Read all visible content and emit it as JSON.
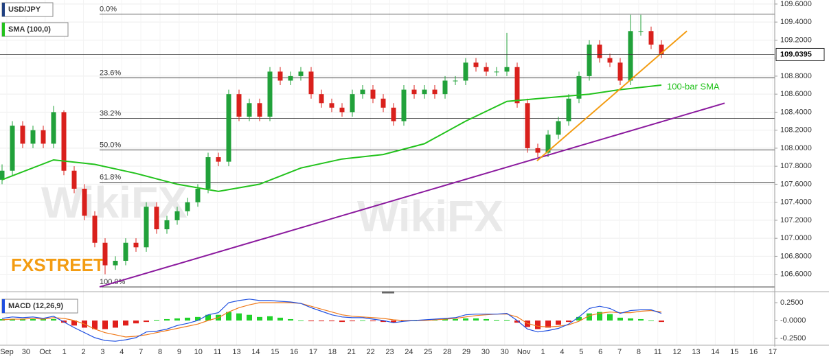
{
  "chart_data": {
    "type": "candlestick",
    "symbol": "USD/JPY",
    "indicator_label": "SMA (100,0)",
    "brand": "FXSTREET",
    "watermark": "WikiFX",
    "up_color": "#21a13a",
    "down_color": "#d9201c",
    "xlim": [
      -0.2,
      75
    ],
    "ylim": [
      106.43,
      109.645
    ],
    "yticks": [
      {
        "value": 106.6,
        "label": "106.6000"
      },
      {
        "value": 106.8,
        "label": "106.8000"
      },
      {
        "value": 107.0,
        "label": "107.0000"
      },
      {
        "value": 107.2,
        "label": "107.2000"
      },
      {
        "value": 107.4,
        "label": "107.4000"
      },
      {
        "value": 107.6,
        "label": "107.6000"
      },
      {
        "value": 107.8,
        "label": "107.8000"
      },
      {
        "value": 108.0,
        "label": "108.0000"
      },
      {
        "value": 108.2,
        "label": "108.2000"
      },
      {
        "value": 108.4,
        "label": "108.4000"
      },
      {
        "value": 108.6,
        "label": "108.6000"
      },
      {
        "value": 108.8,
        "label": "108.8000"
      },
      {
        "value": 109.0,
        "label": "109.0000"
      },
      {
        "value": 109.2,
        "label": "109.2000"
      },
      {
        "value": 109.4,
        "label": "109.4000"
      },
      {
        "value": 109.6,
        "label": "109.6000"
      }
    ],
    "grid": true,
    "last_price": 109.0395,
    "date_labels": [
      "Sep",
      "30",
      "Oct",
      "1",
      "2",
      "3",
      "4",
      "7",
      "8",
      "9",
      "10",
      "11",
      "13",
      "14",
      "15",
      "16",
      "17",
      "18",
      "21",
      "22",
      "23",
      "24",
      "25",
      "28",
      "29",
      "30",
      "30",
      "Nov",
      "1",
      "4",
      "5",
      "6",
      "7",
      "8",
      "11",
      "12",
      "13",
      "14",
      "15",
      "16",
      "17"
    ],
    "x": [
      0,
      1,
      2,
      3,
      4,
      5,
      6,
      7,
      8,
      9,
      10,
      11,
      12,
      13,
      14,
      15,
      16,
      17,
      18,
      19,
      20,
      21,
      22,
      23,
      24,
      25,
      26,
      27,
      28,
      29,
      30,
      31,
      32,
      33,
      34,
      35,
      36,
      37,
      38,
      39,
      40,
      41,
      42,
      43,
      44,
      45,
      46,
      47,
      48,
      49,
      50,
      51,
      52,
      53,
      54,
      55,
      56,
      57,
      58,
      59,
      60,
      61,
      62,
      63,
      64
    ],
    "open": [
      107.65,
      107.75,
      108.25,
      108.05,
      108.2,
      108.05,
      108.4,
      107.75,
      107.55,
      107.25,
      106.95,
      106.7,
      106.75,
      106.95,
      106.9,
      107.35,
      107.1,
      107.2,
      107.3,
      107.4,
      107.55,
      107.9,
      107.85,
      108.6,
      108.35,
      108.5,
      108.35,
      108.85,
      108.75,
      108.8,
      108.85,
      108.6,
      108.5,
      108.45,
      108.4,
      108.6,
      108.65,
      108.55,
      108.45,
      108.3,
      108.65,
      108.6,
      108.65,
      108.6,
      108.75,
      108.75,
      108.95,
      108.9,
      108.85,
      108.85,
      108.9,
      108.5,
      108.0,
      107.95,
      108.15,
      108.3,
      108.55,
      108.8,
      109.15,
      109.0,
      108.95,
      108.75,
      109.3,
      109.3,
      109.15
    ],
    "high": [
      107.82,
      108.3,
      108.3,
      108.25,
      108.25,
      108.47,
      108.42,
      107.8,
      107.6,
      107.3,
      107.0,
      106.8,
      107.0,
      107.0,
      107.4,
      107.4,
      107.25,
      107.35,
      107.45,
      107.6,
      107.95,
      107.95,
      108.65,
      108.65,
      108.55,
      108.55,
      108.9,
      108.9,
      108.85,
      108.9,
      108.9,
      108.65,
      108.55,
      108.5,
      108.65,
      108.7,
      108.7,
      108.6,
      108.5,
      108.7,
      108.7,
      108.7,
      108.7,
      108.8,
      108.8,
      109.0,
      109.0,
      108.95,
      108.9,
      109.28,
      108.95,
      108.55,
      108.05,
      108.2,
      108.35,
      108.6,
      108.85,
      109.2,
      109.2,
      109.05,
      109.0,
      109.48,
      109.48,
      109.35,
      109.2
    ],
    "low": [
      107.6,
      107.7,
      108.0,
      108.0,
      108.0,
      108.0,
      107.7,
      107.5,
      107.2,
      106.9,
      106.6,
      106.65,
      106.7,
      106.85,
      106.85,
      107.05,
      107.05,
      107.15,
      107.25,
      107.35,
      107.5,
      107.8,
      107.8,
      108.3,
      108.3,
      108.3,
      108.3,
      108.7,
      108.7,
      108.75,
      108.55,
      108.45,
      108.4,
      108.35,
      108.35,
      108.55,
      108.5,
      108.4,
      108.25,
      108.25,
      108.55,
      108.55,
      108.55,
      108.55,
      108.7,
      108.7,
      108.85,
      108.8,
      108.8,
      108.8,
      108.45,
      107.95,
      107.9,
      107.9,
      108.1,
      108.25,
      108.5,
      108.75,
      108.95,
      108.9,
      108.7,
      108.7,
      109.25,
      109.1,
      109.0
    ],
    "close": [
      107.75,
      108.25,
      108.05,
      108.2,
      108.05,
      108.4,
      107.75,
      107.55,
      107.25,
      106.95,
      106.7,
      106.75,
      106.95,
      106.9,
      107.35,
      107.1,
      107.2,
      107.3,
      107.4,
      107.55,
      107.9,
      107.85,
      108.6,
      108.35,
      108.5,
      108.35,
      108.85,
      108.75,
      108.8,
      108.85,
      108.6,
      108.5,
      108.45,
      108.4,
      108.6,
      108.65,
      108.55,
      108.45,
      108.3,
      108.65,
      108.6,
      108.65,
      108.6,
      108.75,
      108.75,
      108.95,
      108.9,
      108.85,
      108.85,
      108.9,
      108.5,
      108.0,
      107.95,
      108.15,
      108.3,
      108.55,
      108.8,
      109.15,
      109.0,
      108.95,
      108.75,
      109.3,
      109.3,
      109.15,
      109.04
    ],
    "fibonacci": [
      {
        "label": "0.0%",
        "value": 109.49
      },
      {
        "label": "23.6%",
        "value": 108.78
      },
      {
        "label": "38.2%",
        "value": 108.33
      },
      {
        "label": "50.0%",
        "value": 107.98
      },
      {
        "label": "61.8%",
        "value": 107.62
      },
      {
        "label": "100.0%",
        "value": 106.46
      }
    ],
    "sma": {
      "name": "100-bar SMA",
      "color": "#22c21c",
      "x": [
        0,
        5,
        9,
        13,
        17,
        21,
        25,
        29,
        33,
        37,
        41,
        45,
        49,
        53,
        57,
        60,
        64
      ],
      "values": [
        107.65,
        107.87,
        107.82,
        107.72,
        107.6,
        107.52,
        107.6,
        107.78,
        107.88,
        107.93,
        108.05,
        108.3,
        108.52,
        108.56,
        108.6,
        108.65,
        108.7
      ]
    },
    "trendlines": [
      {
        "color": "#8b1a9e",
        "x": [
          9.47,
          70.13
        ],
        "values": [
          106.46,
          108.5
        ]
      },
      {
        "color": "#f39c12",
        "x": [
          51.93,
          66.47
        ],
        "values": [
          107.86,
          109.3
        ]
      }
    ],
    "macd": {
      "title": "MACD (12,26,9)",
      "ylim": [
        -0.317,
        0.337
      ],
      "yticks": [
        {
          "value": 0.25,
          "label": "0.2500"
        },
        {
          "value": 0,
          "label": "-0.0000"
        },
        {
          "value": -0.25,
          "label": "-0.2500"
        }
      ],
      "up_color": "#21d12a",
      "down_color": "#e0201c",
      "macd_color": "#1f4fe0",
      "signal_color": "#f07a1a",
      "histogram": [
        0.02,
        0.02,
        0.02,
        0.02,
        0.02,
        0.02,
        -0.03,
        -0.07,
        -0.1,
        -0.12,
        -0.12,
        -0.1,
        -0.07,
        -0.04,
        -0.02,
        0.01,
        0.02,
        0.03,
        0.04,
        0.05,
        0.08,
        0.08,
        0.12,
        0.1,
        0.08,
        0.05,
        0.06,
        0.04,
        0.02,
        0.0,
        -0.01,
        -0.01,
        -0.01,
        -0.02,
        -0.01,
        0.0,
        -0.01,
        -0.02,
        -0.03,
        -0.01,
        0.0,
        0.01,
        0.01,
        0.02,
        0.02,
        0.03,
        0.03,
        0.02,
        0.01,
        0.01,
        -0.03,
        -0.09,
        -0.12,
        -0.1,
        -0.06,
        -0.02,
        0.05,
        0.1,
        0.12,
        0.09,
        0.04,
        0.03,
        0.02,
        0.0,
        -0.02
      ],
      "macd": [
        0.03,
        0.05,
        0.04,
        0.05,
        0.03,
        0.06,
        -0.02,
        -0.1,
        -0.17,
        -0.24,
        -0.28,
        -0.29,
        -0.27,
        -0.24,
        -0.16,
        -0.15,
        -0.12,
        -0.07,
        -0.04,
        0.0,
        0.08,
        0.11,
        0.25,
        0.28,
        0.3,
        0.28,
        0.28,
        0.27,
        0.26,
        0.24,
        0.18,
        0.13,
        0.08,
        0.05,
        0.04,
        0.04,
        0.02,
        0.0,
        -0.03,
        -0.01,
        0.0,
        0.01,
        0.02,
        0.03,
        0.04,
        0.08,
        0.09,
        0.09,
        0.09,
        0.1,
        0.0,
        -0.12,
        -0.16,
        -0.14,
        -0.11,
        -0.05,
        0.05,
        0.17,
        0.2,
        0.17,
        0.1,
        0.14,
        0.15,
        0.15,
        0.1
      ],
      "signal": [
        0.01,
        0.02,
        0.02,
        0.03,
        0.02,
        0.04,
        0.03,
        0.0,
        -0.05,
        -0.12,
        -0.17,
        -0.2,
        -0.23,
        -0.22,
        -0.2,
        -0.17,
        -0.14,
        -0.11,
        -0.08,
        -0.05,
        0.0,
        0.04,
        0.12,
        0.18,
        0.22,
        0.25,
        0.25,
        0.25,
        0.25,
        0.24,
        0.2,
        0.16,
        0.12,
        0.08,
        0.06,
        0.05,
        0.04,
        0.03,
        0.01,
        0.0,
        0.0,
        0.0,
        0.01,
        0.02,
        0.03,
        0.05,
        0.07,
        0.08,
        0.09,
        0.09,
        0.05,
        -0.04,
        -0.08,
        -0.09,
        -0.08,
        -0.06,
        -0.01,
        0.07,
        0.1,
        0.12,
        0.11,
        0.11,
        0.13,
        0.14,
        0.12
      ]
    }
  }
}
